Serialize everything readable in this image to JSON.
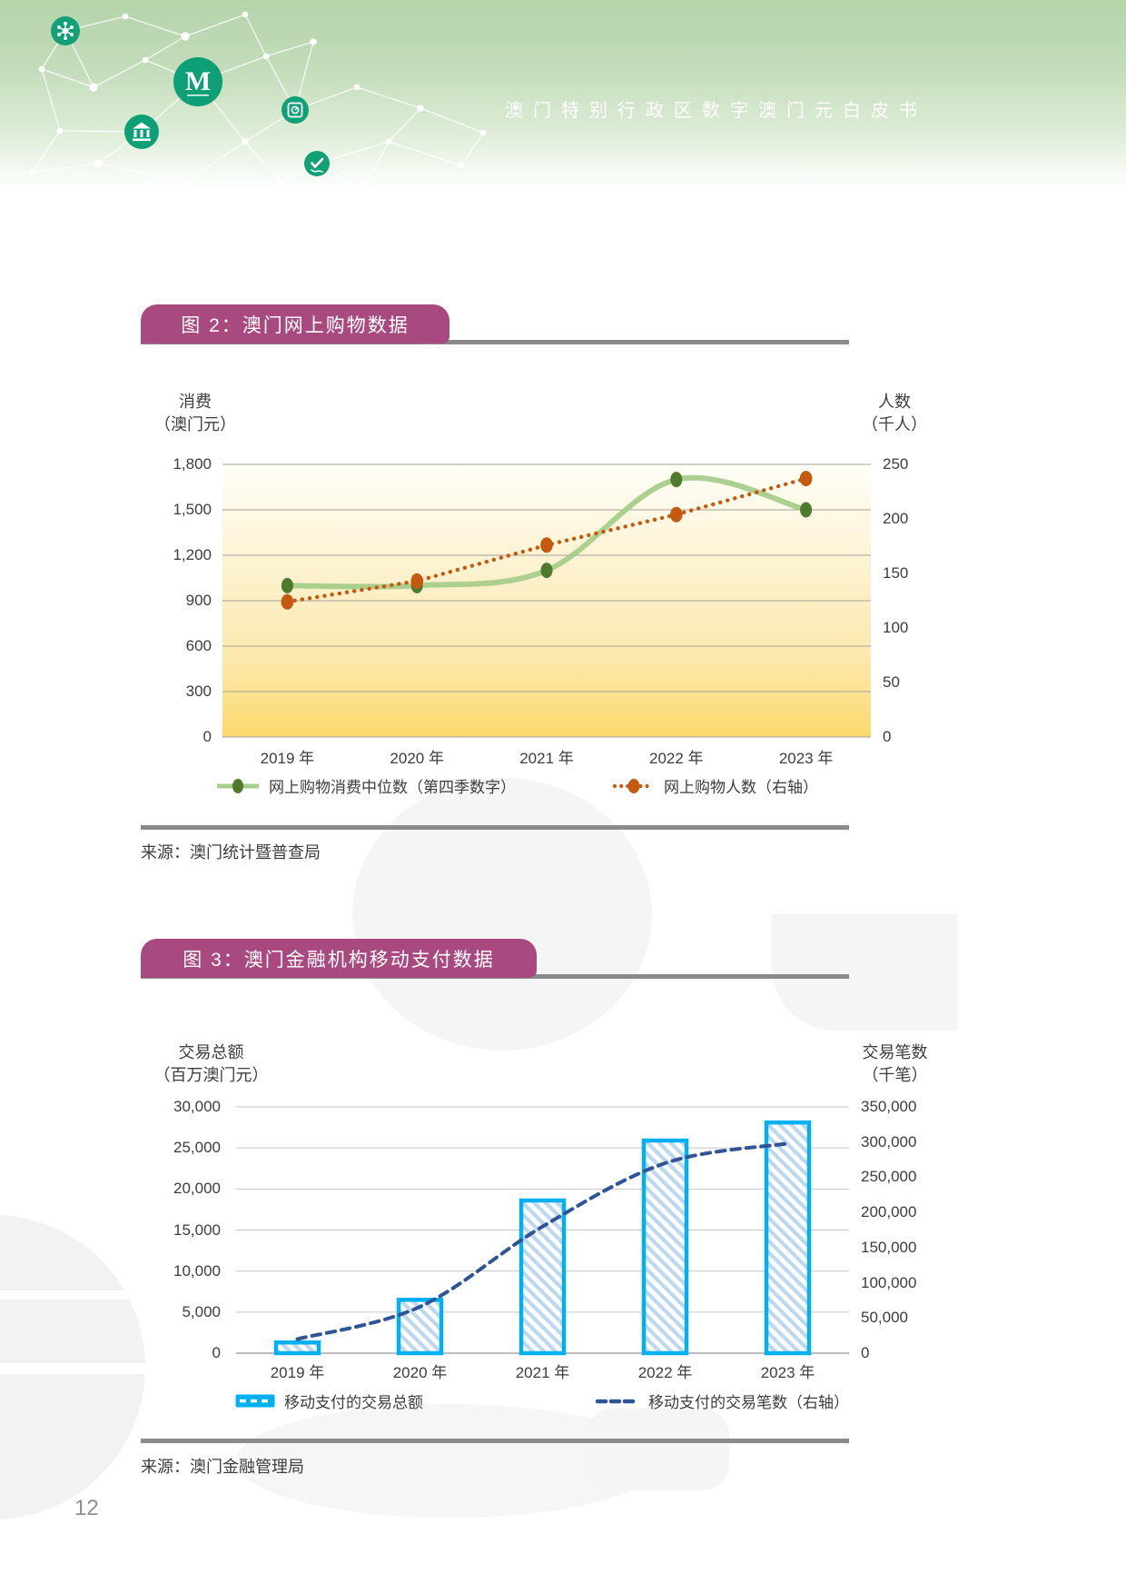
{
  "header": {
    "title": "澳门特别行政区数字澳门元白皮书"
  },
  "page_number": "12",
  "figure2": {
    "title": "图 2：澳门网上购物数据",
    "source": "来源：澳门统计暨普查局",
    "left_axis_title": [
      "消费",
      "（澳门元）"
    ],
    "right_axis_title": [
      "人数",
      "（千人）"
    ],
    "legend": [
      {
        "label": "网上购物消费中位数（第四季数字）"
      },
      {
        "label": "网上购物人数（右轴）"
      }
    ]
  },
  "figure3": {
    "title": "图 3：澳门金融机构移动支付数据",
    "source": "来源：澳门金融管理局",
    "left_axis_title": [
      "交易总额",
      "（百万澳门元）"
    ],
    "right_axis_title": [
      "交易笔数",
      "（千笔）"
    ],
    "legend": [
      {
        "label": "移动支付的交易总额"
      },
      {
        "label": "移动支付的交易笔数（右轴）"
      }
    ]
  },
  "chart_data": [
    {
      "id": "fig2-online-shopping",
      "type": "line",
      "title": "图 2：澳门网上购物数据",
      "categories": [
        "2019 年",
        "2020 年",
        "2021 年",
        "2022 年",
        "2023 年"
      ],
      "series": [
        {
          "name": "网上购物消费中位数（第四季数字）",
          "axis": "left",
          "style": "smooth-line-with-markers",
          "color": "#a7cd8b",
          "marker_color": "#4e7a2e",
          "values": [
            1000,
            1000,
            1100,
            1700,
            1500
          ]
        },
        {
          "name": "网上购物人数（右轴）",
          "axis": "right",
          "style": "dotted-line-with-markers",
          "color": "#c4590f",
          "marker_color": "#c4590f",
          "values": [
            124,
            143,
            176,
            204,
            237
          ]
        }
      ],
      "left_axis": {
        "label": "消费（澳门元）",
        "min": 0,
        "max": 1800,
        "ticks": [
          0,
          300,
          600,
          900,
          1200,
          1500,
          1800
        ]
      },
      "right_axis": {
        "label": "人数（千人）",
        "min": 0,
        "max": 250,
        "ticks": [
          0,
          50,
          100,
          150,
          200,
          250
        ]
      },
      "grid": true,
      "background": "cream-to-gold vertical gradient",
      "legend_position": "bottom"
    },
    {
      "id": "fig3-mobile-payment",
      "type": "bar+line",
      "title": "图 3：澳门金融机构移动支付数据",
      "categories": [
        "2019 年",
        "2020 年",
        "2021 年",
        "2022 年",
        "2023 年"
      ],
      "series": [
        {
          "name": "移动支付的交易总额",
          "type": "bar",
          "axis": "left",
          "color": "#00b0f0",
          "hatch_color": "#bdd7ee",
          "values": [
            1300,
            6500,
            18600,
            25900,
            28100
          ]
        },
        {
          "name": "移动支付的交易笔数（右轴）",
          "type": "dashed-line",
          "axis": "right",
          "color": "#2f5597",
          "values": [
            20000,
            66000,
            180000,
            270000,
            298000
          ]
        }
      ],
      "left_axis": {
        "label": "交易总额（百万澳门元）",
        "min": 0,
        "max": 30000,
        "ticks": [
          0,
          5000,
          10000,
          15000,
          20000,
          25000,
          30000
        ]
      },
      "right_axis": {
        "label": "交易笔数（千笔）",
        "min": 0,
        "max": 350000,
        "ticks": [
          0,
          50000,
          100000,
          150000,
          200000,
          250000,
          300000,
          350000
        ]
      },
      "grid": true,
      "background": "white",
      "legend_position": "bottom"
    }
  ],
  "colors": {
    "figure_title_box": "#a8497f",
    "rule_gray": "#8a8a8a",
    "banner_green_top": "#b4d4aa",
    "icon_green": "#12a077",
    "chart1_bg_top": "#fffef8",
    "chart1_bg_bottom": "#fbd96d",
    "chart1_grid": "#a5a198",
    "green_line": "#a7cd8b",
    "green_marker": "#4e7a2e",
    "orange_dotted": "#c4590f",
    "bar_border_cyan": "#00b0f0",
    "bar_hatch_blue": "#bdd7ee",
    "navy_dashed": "#2f5597",
    "chart2_grid": "#c7c7c7"
  }
}
